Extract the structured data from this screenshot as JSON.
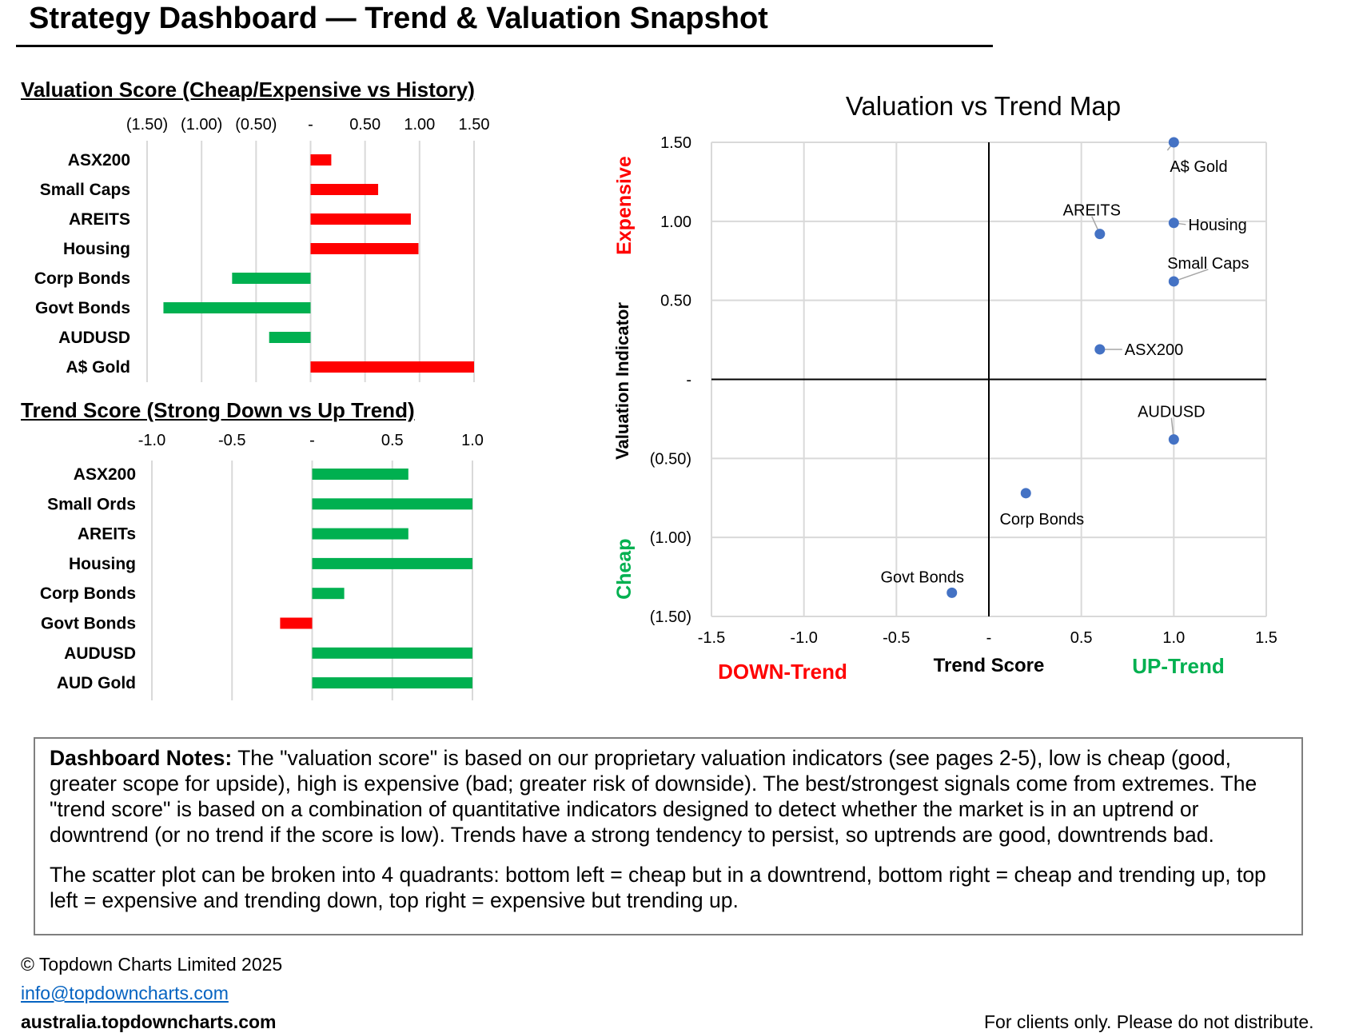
{
  "header": {
    "title": "Strategy Dashboard — Trend & Valuation Snapshot"
  },
  "chart_data": [
    {
      "type": "bar",
      "orientation": "horizontal",
      "title": "Valuation Score (Cheap/Expensive vs History)",
      "categories": [
        "ASX200",
        "Small Caps",
        "AREITS",
        "Housing",
        "Corp Bonds",
        "Govt Bonds",
        "AUDUSD",
        "A$ Gold"
      ],
      "values": [
        0.19,
        0.62,
        0.92,
        0.99,
        -0.72,
        -1.35,
        -0.38,
        1.5
      ],
      "xlim": [
        -1.5,
        1.5
      ],
      "ticks": [
        -1.5,
        -1.0,
        -0.5,
        0,
        0.5,
        1.0,
        1.5
      ],
      "tick_labels": [
        "(1.50)",
        "(1.00)",
        "(0.50)",
        "-",
        "0.50",
        "1.00",
        "1.50"
      ],
      "positive_color": "#ff0000",
      "negative_color": "#00b050"
    },
    {
      "type": "bar",
      "orientation": "horizontal",
      "title": "Trend Score (Strong Down vs Up Trend)",
      "categories": [
        "ASX200",
        "Small Ords",
        "AREITs",
        "Housing",
        "Corp Bonds",
        "Govt Bonds",
        "AUDUSD",
        "AUD Gold"
      ],
      "values": [
        0.6,
        1.0,
        0.6,
        1.0,
        0.2,
        -0.2,
        1.0,
        1.0
      ],
      "xlim": [
        -1.0,
        1.0
      ],
      "ticks": [
        -1.0,
        -0.5,
        0,
        0.5,
        1.0
      ],
      "tick_labels": [
        "-1.0",
        "-0.5",
        "-",
        "0.5",
        "1.0"
      ],
      "positive_color": "#00b050",
      "negative_color": "#ff0000"
    },
    {
      "type": "scatter",
      "title": "Valuation vs Trend Map",
      "xlabel": "Trend Score",
      "ylabel": "Valuation Indicator",
      "xlim": [
        -1.5,
        1.5
      ],
      "ylim": [
        -1.5,
        1.5
      ],
      "x_ticks": [
        -1.5,
        -1.0,
        -0.5,
        0,
        0.5,
        1.0,
        1.5
      ],
      "x_tick_labels": [
        "-1.5",
        "-1.0",
        "-0.5",
        "-",
        "0.5",
        "1.0",
        "1.5"
      ],
      "y_ticks": [
        1.5,
        1.0,
        0.5,
        0,
        -0.5,
        -1.0,
        -1.5
      ],
      "y_tick_labels": [
        "1.50",
        "1.00",
        "0.50",
        "-",
        "(0.50)",
        "(1.00)",
        "(1.50)"
      ],
      "grid": true,
      "point_color": "#4472c4",
      "points": [
        {
          "label": "A$ Gold",
          "x": 1.0,
          "y": 1.5
        },
        {
          "label": "AREITS",
          "x": 0.6,
          "y": 0.92
        },
        {
          "label": "Housing",
          "x": 1.0,
          "y": 0.99
        },
        {
          "label": "Small Caps",
          "x": 1.0,
          "y": 0.62
        },
        {
          "label": "ASX200",
          "x": 0.6,
          "y": 0.19
        },
        {
          "label": "AUDUSD",
          "x": 1.0,
          "y": -0.38
        },
        {
          "label": "Corp Bonds",
          "x": 0.2,
          "y": -0.72
        },
        {
          "label": "Govt Bonds",
          "x": -0.2,
          "y": -1.35
        }
      ],
      "annotations": {
        "expensive": "Expensive",
        "cheap": "Cheap",
        "down_trend": "DOWN-Trend",
        "up_trend": "UP-Trend",
        "expensive_color": "#ff0000",
        "cheap_color": "#00b050"
      }
    }
  ],
  "notes": {
    "heading": "Dashboard Notes:",
    "paragraph1": " The \"valuation score\" is based on our proprietary valuation indicators (see pages 2-5), low is cheap (good, greater scope for upside), high is expensive (bad; greater risk of downside). The best/strongest signals come from extremes. The \"trend score\" is based on a combination of quantitative indicators designed to detect whether the market is in an uptrend or downtrend (or no trend if the score is low). Trends have a strong tendency to persist, so uptrends are good, downtrends bad.",
    "paragraph2": "The scatter plot can be broken into 4 quadrants: bottom left = cheap but in a downtrend, bottom right = cheap and trending up, top left = expensive and trending down, top right = expensive but trending up."
  },
  "footer": {
    "copyright": "© Topdown Charts Limited 2025",
    "email": "info@topdowncharts.com",
    "website": "australia.topdowncharts.com",
    "disclaimer": "For clients only.  Please do not distribute."
  }
}
